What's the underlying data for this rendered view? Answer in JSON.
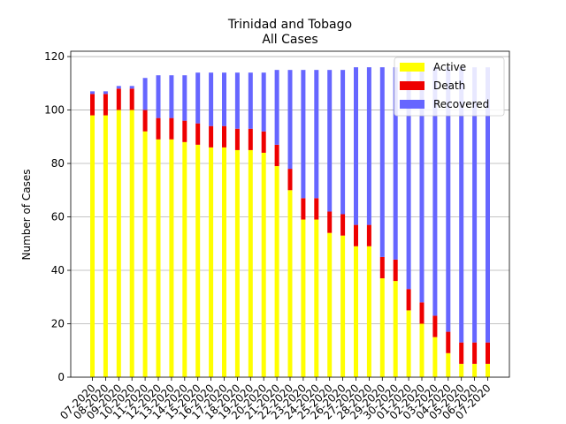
{
  "chart_data": {
    "type": "bar",
    "stacked": true,
    "title": "Trinidad and Tobago",
    "subtitle": "All Cases",
    "xlabel": "",
    "ylabel": "Number of Cases",
    "ylim": [
      0,
      122
    ],
    "yticks": [
      0,
      20,
      40,
      60,
      80,
      100,
      120
    ],
    "grid": "horizontal",
    "legend_position": "top-right",
    "categories": [
      "07-2020",
      "08-2020",
      "09-2020",
      "10-2020",
      "11-2020",
      "12-2020",
      "13-2020",
      "14-2020",
      "15-2020",
      "16-2020",
      "17-2020",
      "18-2020",
      "19-2020",
      "20-2020",
      "21-2020",
      "22-2020",
      "23-2020",
      "24-2020",
      "25-2020",
      "26-2020",
      "27-2020",
      "28-2020",
      "29-2020",
      "30-2020",
      "01-2020",
      "02-2020",
      "03-2020",
      "04-2020",
      "05-2020",
      "06-2020",
      "07-2020"
    ],
    "series": [
      {
        "name": "Active",
        "color": "#ffff00",
        "values": [
          98,
          98,
          100,
          100,
          92,
          89,
          89,
          88,
          87,
          86,
          86,
          85,
          85,
          84,
          79,
          70,
          59,
          59,
          54,
          53,
          49,
          49,
          37,
          36,
          25,
          20,
          15,
          9,
          5,
          5,
          5
        ]
      },
      {
        "name": "Death",
        "color": "#ee0000",
        "values": [
          8,
          8,
          8,
          8,
          8,
          8,
          8,
          8,
          8,
          8,
          8,
          8,
          8,
          8,
          8,
          8,
          8,
          8,
          8,
          8,
          8,
          8,
          8,
          8,
          8,
          8,
          8,
          8,
          8,
          8,
          8
        ]
      },
      {
        "name": "Recovered",
        "color": "#6666ff",
        "values": [
          1,
          1,
          1,
          1,
          12,
          16,
          16,
          17,
          19,
          20,
          20,
          21,
          21,
          22,
          28,
          37,
          48,
          48,
          53,
          54,
          59,
          59,
          71,
          72,
          83,
          88,
          93,
          99,
          103,
          103,
          103
        ]
      }
    ]
  }
}
